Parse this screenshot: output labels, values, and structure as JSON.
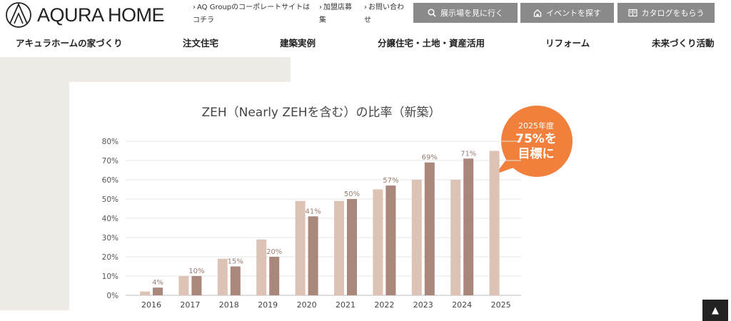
{
  "header": {
    "logo_text": "AQURA HOME",
    "links": [
      {
        "pre": "›",
        "line1": "AQ Groupのコーポレートサイトは",
        "line2": "コチラ"
      },
      {
        "pre": "›",
        "line1": "加盟店募",
        "line2": "集"
      },
      {
        "pre": "›",
        "line1": "お問い合わ",
        "line2": "せ"
      }
    ],
    "buttons": [
      {
        "label": "展示場を見に行く",
        "icon": "search-icon"
      },
      {
        "label": "イベントを探す",
        "icon": "home-icon"
      },
      {
        "label": "カタログをもらう",
        "icon": "book-icon"
      }
    ]
  },
  "nav": {
    "items": [
      "アキュラホームの家づくり",
      "注文住宅",
      "建築実例",
      "分譲住宅・土地・資産活用",
      "リフォーム",
      "未来づくり活動"
    ]
  },
  "badge": {
    "line1": "2025年度",
    "line2": "75%を",
    "line3": "目標に",
    "color": "#f0803c"
  },
  "colors": {
    "light_bar": "#dcc3b5",
    "dark_bar": "#a9877a",
    "button": "#8a8a8a"
  },
  "chart_data": {
    "type": "bar",
    "title": "ZEH（Nearly ZEHを含む）の比率（新築）",
    "categories": [
      "2016",
      "2017",
      "2018",
      "2019",
      "2020",
      "2021",
      "2022",
      "2023",
      "2024",
      "2025"
    ],
    "series": [
      {
        "values": [
          2,
          10,
          19,
          29,
          49,
          49,
          55,
          60,
          60,
          75
        ]
      },
      {
        "values": [
          4,
          10,
          15,
          20,
          41,
          50,
          57,
          69,
          71,
          null
        ]
      }
    ],
    "data_labels": [
      "4%",
      "10%",
      "15%",
      "20%",
      "41%",
      "50%",
      "57%",
      "69%",
      "71%",
      ""
    ],
    "y_ticks": [
      "0%",
      "10%",
      "20%",
      "30%",
      "40%",
      "50%",
      "60%",
      "70%",
      "80%"
    ],
    "ylim": [
      0,
      80
    ],
    "grid": true,
    "legend": "none"
  },
  "totop": {
    "label": "▲"
  }
}
